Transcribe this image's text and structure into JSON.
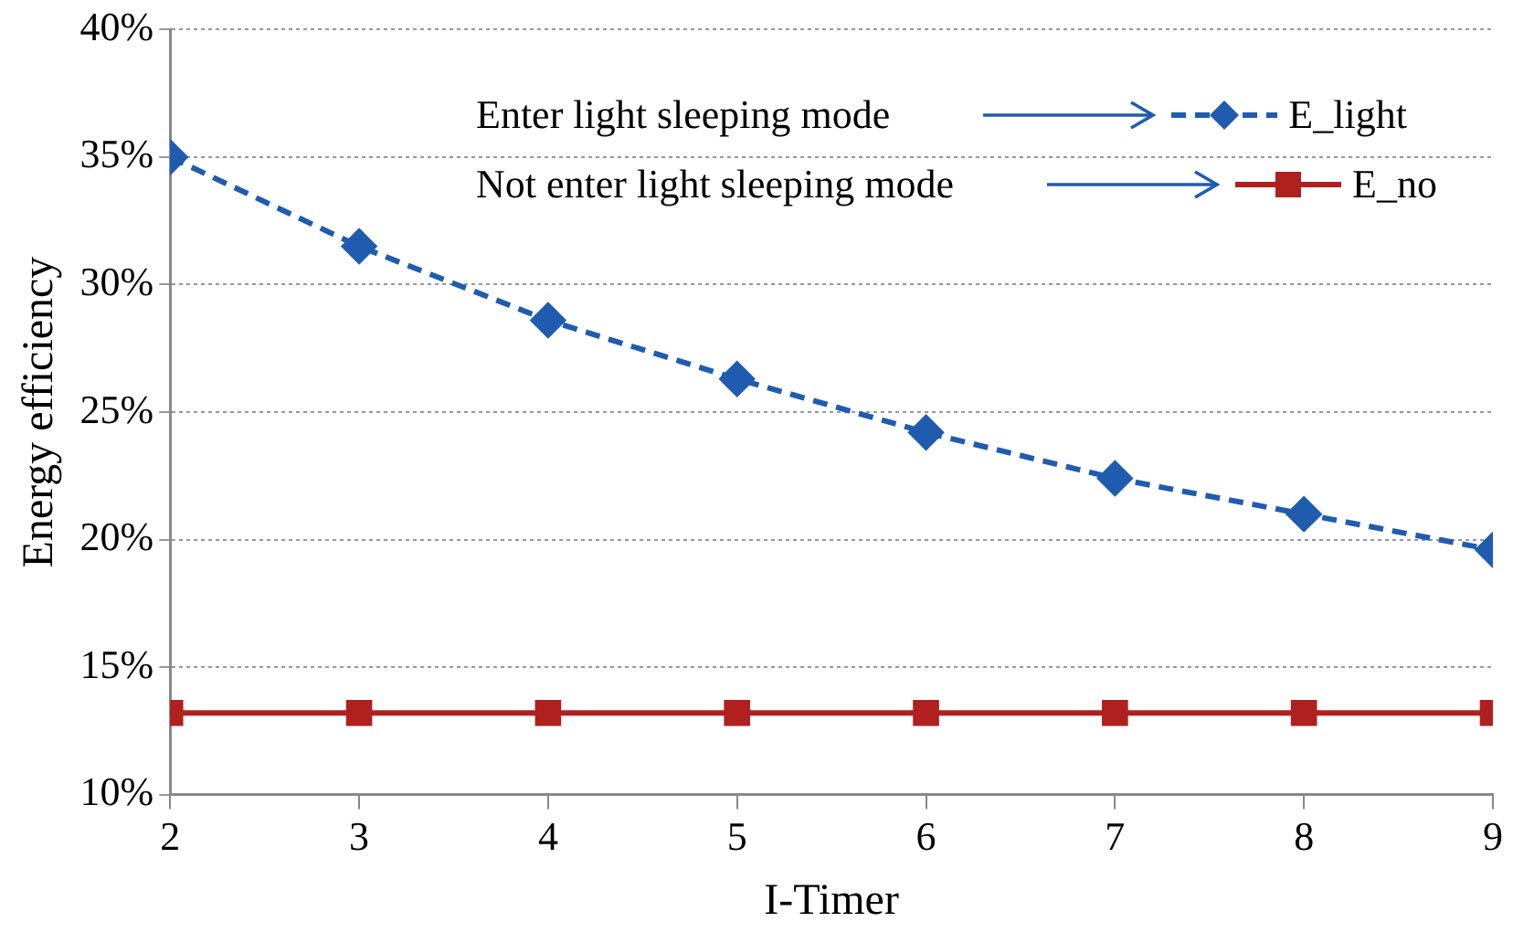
{
  "chart_data": {
    "type": "line",
    "xlabel": "I-Timer",
    "ylabel": "Energy efficiency",
    "x": [
      2,
      3,
      4,
      5,
      6,
      7,
      8,
      9
    ],
    "xlim": [
      2,
      9
    ],
    "xticks": [
      2,
      3,
      4,
      5,
      6,
      7,
      8,
      9
    ],
    "ylim": [
      10,
      40
    ],
    "yticks": [
      {
        "value": 10,
        "label": "10%"
      },
      {
        "value": 15,
        "label": "15%"
      },
      {
        "value": 20,
        "label": "20%"
      },
      {
        "value": 25,
        "label": "25%"
      },
      {
        "value": 30,
        "label": "30%"
      },
      {
        "value": 35,
        "label": "35%"
      },
      {
        "value": 40,
        "label": "40%"
      }
    ],
    "grid": "y",
    "legend": "top right",
    "annotations": [
      "Enter light sleeping mode",
      "Not enter light sleeping mode"
    ],
    "series": [
      {
        "name": "E_light",
        "color": "#1f5cb0",
        "values": [
          35.0,
          31.5,
          28.6,
          26.3,
          24.2,
          22.4,
          21.0,
          19.6
        ],
        "marker": "diamond",
        "line_style": "dashed"
      },
      {
        "name": "E_no",
        "color": "#b0201e",
        "values": [
          13.2,
          13.2,
          13.2,
          13.2,
          13.2,
          13.2,
          13.2,
          13.2
        ],
        "marker": "square",
        "line_style": "solid"
      }
    ]
  }
}
